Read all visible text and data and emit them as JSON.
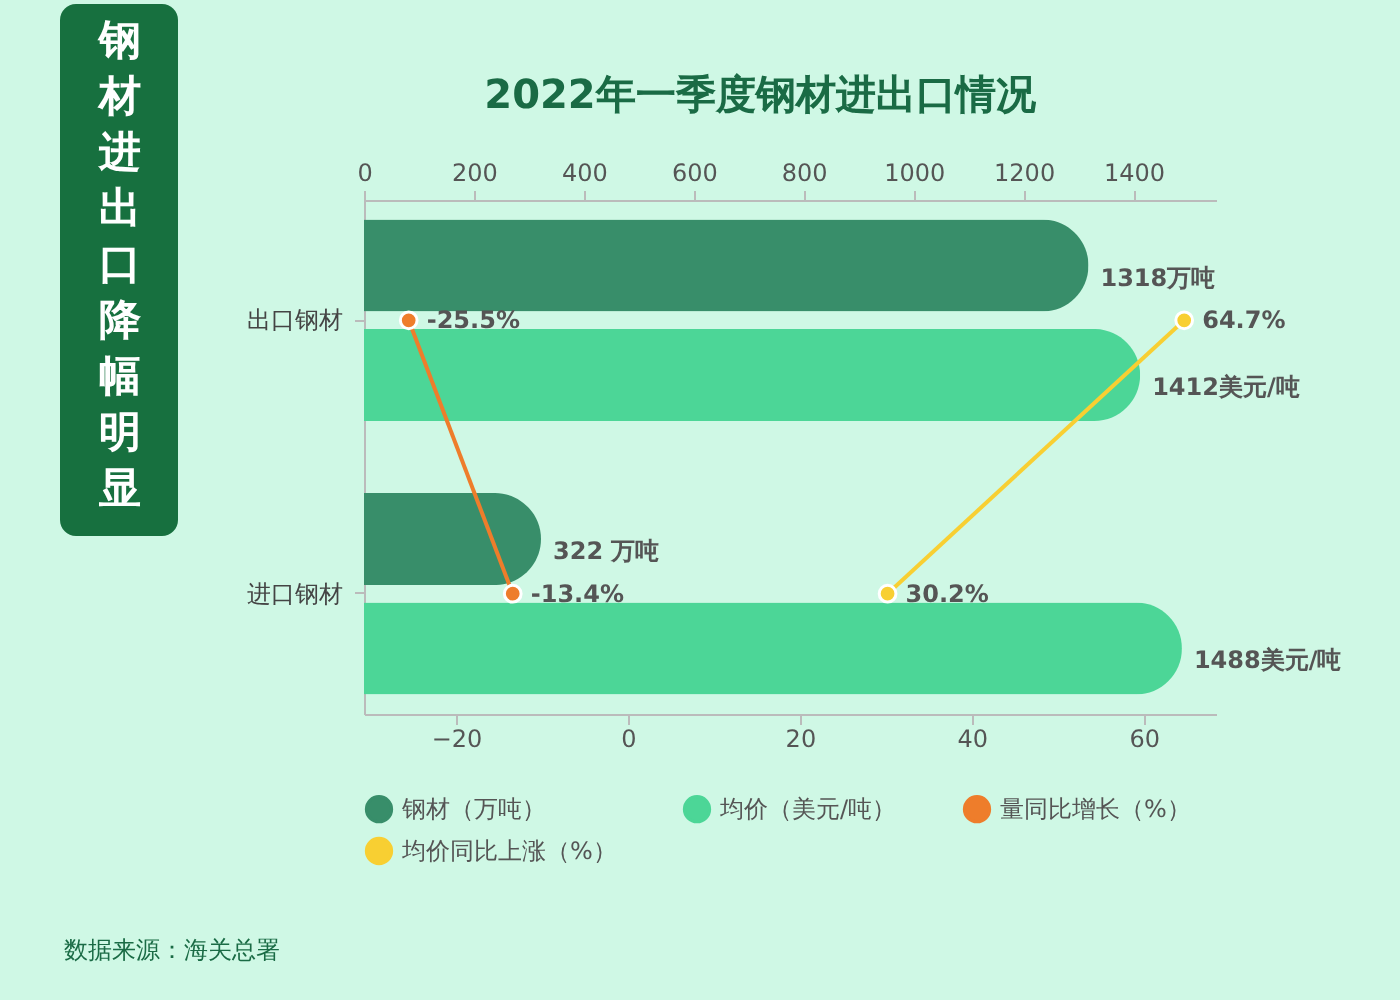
{
  "chart_data": {
    "type": "bar",
    "orientation": "horizontal",
    "title": "2022年一季度钢材进出口情况",
    "subtitle": "钢材进出口降幅明显",
    "annotations": [
      "数据来源：海关总署"
    ],
    "categories": [
      "出口钢材",
      "进口钢材"
    ],
    "series": [
      {
        "name": "钢材（万吨）",
        "color": "#388e6a",
        "axis": "x2",
        "values": [
          1318,
          322
        ],
        "value_labels": [
          "1318万吨",
          "322 万吨"
        ]
      },
      {
        "name": "量同比增长（%）",
        "type": "line",
        "color": "#ee7d2b",
        "values": [
          -25.5,
          -13.4
        ],
        "value_labels": [
          "-25.5%",
          "-13.4%"
        ]
      },
      {
        "name": "均价（美元/吨）",
        "color": "#4cd697",
        "axis": "x2",
        "values": [
          1412,
          1488
        ],
        "value_labels": [
          "1412美元/吨",
          "1488美元/吨"
        ]
      },
      {
        "name": "均价同比上涨（%）",
        "type": "line",
        "color": "#f8cf32",
        "values": [
          64.7,
          30.2
        ],
        "value_labels": [
          "64.7%",
          "30.2%"
        ]
      }
    ],
    "xlim": [
      -30.7,
      68.4
    ],
    "xticks": [
      -20,
      0,
      20,
      40,
      60
    ],
    "x2lim": [
      0,
      1550
    ],
    "x2ticks": [
      0,
      200,
      400,
      600,
      800,
      1000,
      1200,
      1400
    ],
    "legend": "bottom",
    "grid": false,
    "marker": "circle",
    "line_style": "solid"
  }
}
